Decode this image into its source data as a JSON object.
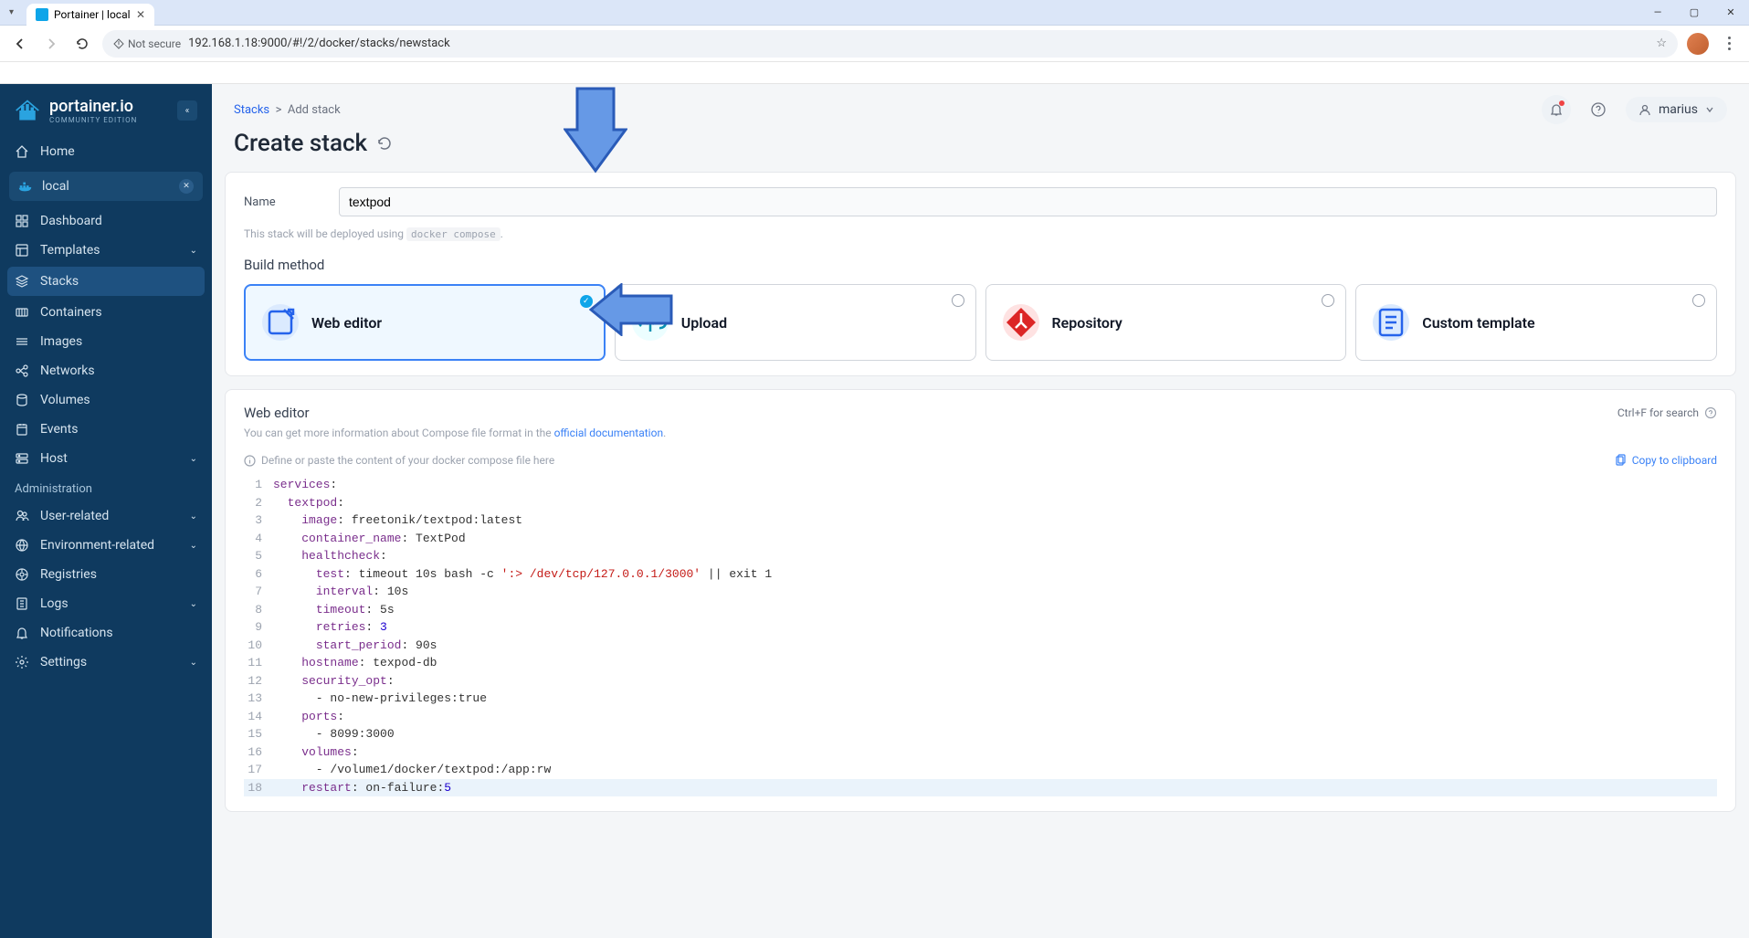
{
  "browser": {
    "tab_title": "Portainer | local",
    "url": "192.168.1.18:9000/#!/2/docker/stacks/newstack",
    "security_label": "Not secure"
  },
  "sidebar": {
    "brand": "portainer.io",
    "edition": "COMMUNITY EDITION",
    "home": "Home",
    "env_name": "local",
    "items": [
      {
        "label": "Dashboard"
      },
      {
        "label": "Templates",
        "expandable": true
      },
      {
        "label": "Stacks",
        "active": true
      },
      {
        "label": "Containers"
      },
      {
        "label": "Images"
      },
      {
        "label": "Networks"
      },
      {
        "label": "Volumes"
      },
      {
        "label": "Events"
      },
      {
        "label": "Host",
        "expandable": true
      }
    ],
    "admin_label": "Administration",
    "admin_items": [
      {
        "label": "User-related",
        "expandable": true
      },
      {
        "label": "Environment-related",
        "expandable": true
      },
      {
        "label": "Registries"
      },
      {
        "label": "Logs",
        "expandable": true
      },
      {
        "label": "Notifications"
      },
      {
        "label": "Settings",
        "expandable": true
      }
    ]
  },
  "header": {
    "breadcrumb_root": "Stacks",
    "breadcrumb_sep": ">",
    "breadcrumb_current": "Add stack",
    "title": "Create stack",
    "username": "marius"
  },
  "form": {
    "name_label": "Name",
    "name_value": "textpod",
    "deploy_hint_pre": "This stack will be deployed using ",
    "deploy_hint_code": "docker compose",
    "deploy_hint_post": ".",
    "build_method_label": "Build method"
  },
  "methods": [
    {
      "label": "Web editor",
      "selected": true,
      "icon_bg": "#dbeafe",
      "icon_fg": "#2563eb"
    },
    {
      "label": "Upload",
      "selected": false,
      "icon_bg": "#ecfeff",
      "icon_fg": "#0891b2"
    },
    {
      "label": "Repository",
      "selected": false,
      "icon_bg": "#fee2e2",
      "icon_fg": "#dc2626"
    },
    {
      "label": "Custom template",
      "selected": false,
      "icon_bg": "#dbeafe",
      "icon_fg": "#2563eb"
    }
  ],
  "editor": {
    "title": "Web editor",
    "search_hint": "Ctrl+F for search",
    "info_pre": "You can get more information about Compose file format in the ",
    "info_link": "official documentation",
    "info_post": ".",
    "define_hint": "Define or paste the content of your docker compose file here",
    "copy_label": "Copy to clipboard"
  },
  "code": {
    "lines": [
      [
        [
          "key",
          "services"
        ],
        [
          "punc",
          ":"
        ]
      ],
      [
        [
          "punc",
          "  "
        ],
        [
          "key",
          "textpod"
        ],
        [
          "punc",
          ":"
        ]
      ],
      [
        [
          "punc",
          "    "
        ],
        [
          "key",
          "image"
        ],
        [
          "punc",
          ": freetonik/textpod:latest"
        ]
      ],
      [
        [
          "punc",
          "    "
        ],
        [
          "key",
          "container_name"
        ],
        [
          "punc",
          ": TextPod"
        ]
      ],
      [
        [
          "punc",
          "    "
        ],
        [
          "key",
          "healthcheck"
        ],
        [
          "punc",
          ":"
        ]
      ],
      [
        [
          "punc",
          "      "
        ],
        [
          "key",
          "test"
        ],
        [
          "punc",
          ": timeout 10s bash -c "
        ],
        [
          "str",
          "':> /dev/tcp/127.0.0.1/3000'"
        ],
        [
          "punc",
          " || exit 1"
        ]
      ],
      [
        [
          "punc",
          "      "
        ],
        [
          "key",
          "interval"
        ],
        [
          "punc",
          ": 10s"
        ]
      ],
      [
        [
          "punc",
          "      "
        ],
        [
          "key",
          "timeout"
        ],
        [
          "punc",
          ": 5s"
        ]
      ],
      [
        [
          "punc",
          "      "
        ],
        [
          "key",
          "retries"
        ],
        [
          "punc",
          ": "
        ],
        [
          "num",
          "3"
        ]
      ],
      [
        [
          "punc",
          "      "
        ],
        [
          "key",
          "start_period"
        ],
        [
          "punc",
          ": 90s"
        ]
      ],
      [
        [
          "punc",
          "    "
        ],
        [
          "key",
          "hostname"
        ],
        [
          "punc",
          ": texpod-db"
        ]
      ],
      [
        [
          "punc",
          "    "
        ],
        [
          "key",
          "security_opt"
        ],
        [
          "punc",
          ":"
        ]
      ],
      [
        [
          "punc",
          "      - no-new-privileges:true"
        ]
      ],
      [
        [
          "punc",
          "    "
        ],
        [
          "key",
          "ports"
        ],
        [
          "punc",
          ":"
        ]
      ],
      [
        [
          "punc",
          "      - 8099:3000"
        ]
      ],
      [
        [
          "punc",
          "    "
        ],
        [
          "key",
          "volumes"
        ],
        [
          "punc",
          ":"
        ]
      ],
      [
        [
          "punc",
          "      - /volume1/docker/textpod:/app:rw"
        ]
      ],
      [
        [
          "punc",
          "    "
        ],
        [
          "key",
          "restart"
        ],
        [
          "punc",
          ": on-failure:"
        ],
        [
          "num",
          "5"
        ]
      ]
    ],
    "highlight_line": 18
  },
  "arrows": {
    "fill": "#6699e6",
    "stroke": "#2a5bb8"
  },
  "colors": {
    "sidebar_bg": "#0f3a5f",
    "main_bg": "#f4f6f8",
    "accent": "#3b82f6"
  }
}
